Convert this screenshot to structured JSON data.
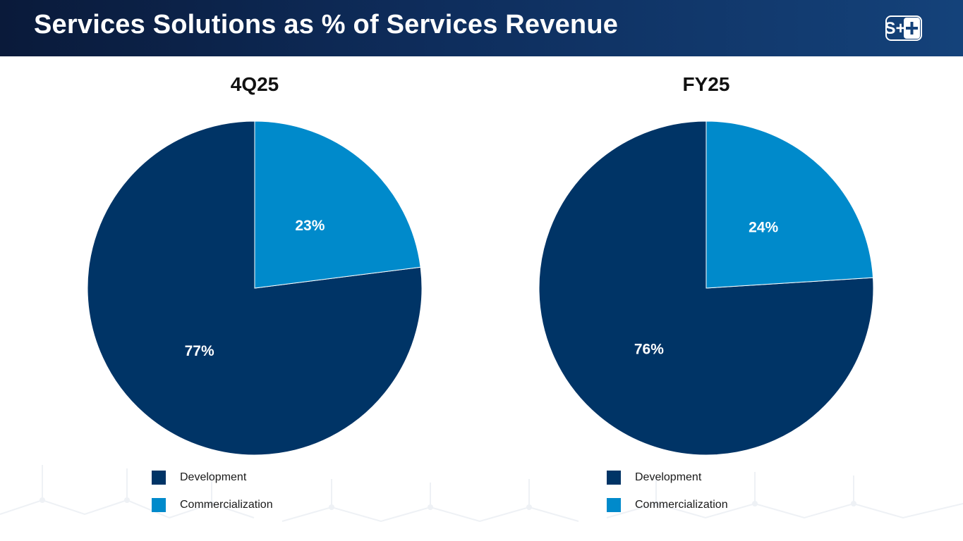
{
  "header": {
    "title": "Services Solutions as % of Services Revenue",
    "logo_text": "S+"
  },
  "colors": {
    "development": "#003466",
    "commercialization": "#008acb"
  },
  "chart_data": [
    {
      "type": "pie",
      "title": "4Q25",
      "categories": [
        "Development",
        "Commercialization"
      ],
      "values": [
        77,
        23
      ],
      "labels": [
        "77%",
        "23%"
      ],
      "legend": [
        "Development",
        "Commercialization"
      ],
      "legend_position": "bottom"
    },
    {
      "type": "pie",
      "title": "FY25",
      "categories": [
        "Development",
        "Commercialization"
      ],
      "values": [
        76,
        24
      ],
      "labels": [
        "76%",
        "24%"
      ],
      "legend": [
        "Development",
        "Commercialization"
      ],
      "legend_position": "bottom"
    }
  ]
}
